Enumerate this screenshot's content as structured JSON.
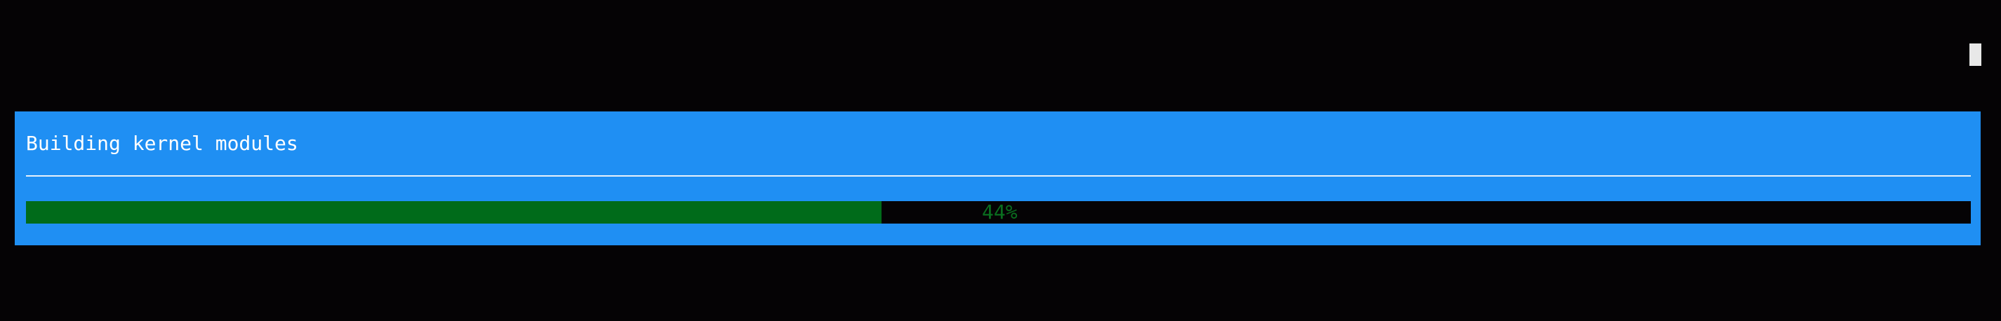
{
  "dialog": {
    "title": "Building kernel modules"
  },
  "progress": {
    "percent": 44,
    "label": "44%"
  },
  "colors": {
    "background": "#050305",
    "dialog": "#1f8ff3",
    "progress_fill": "#006b1a",
    "progress_track": "#050305",
    "progress_text": "#0a6e1f",
    "title_text": "#ffffff"
  }
}
